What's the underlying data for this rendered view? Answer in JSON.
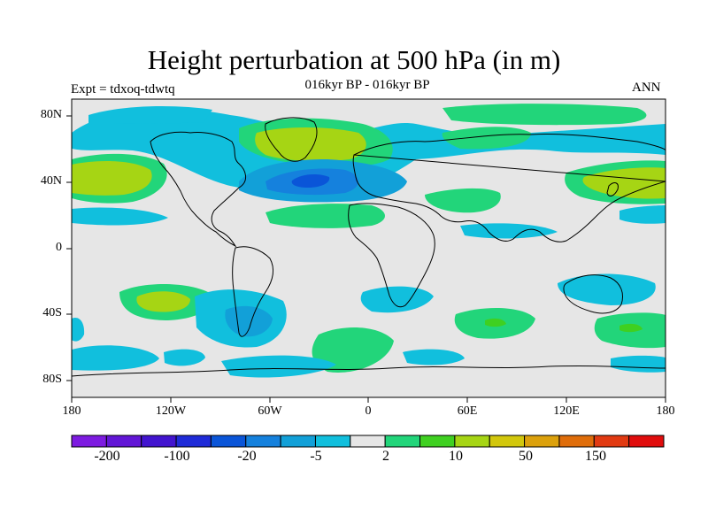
{
  "header": {
    "title": "Height perturbation at 500 hPa (in m)",
    "subtitle": "016kyr BP - 016kyr BP",
    "left_label": "Expt = tdxoq-tdwtq",
    "right_label": "ANN"
  },
  "chart_data": {
    "type": "heatmap",
    "title": "Height perturbation at 500 hPa (in m)",
    "subtitle": "016kyr BP - 016kyr BP",
    "xlabel": "",
    "ylabel": "",
    "x_ticks": [
      "180",
      "120W",
      "60W",
      "0",
      "60E",
      "120E",
      "180"
    ],
    "y_ticks": [
      "80N",
      "40N",
      "0",
      "40S",
      "80S"
    ],
    "xlim": [
      -180,
      180
    ],
    "ylim": [
      -90,
      90
    ],
    "projection": "cylindrical equidistant",
    "grid": false,
    "colorbar": {
      "orientation": "horizontal",
      "placement": "bottom",
      "labels": [
        "-200",
        "-100",
        "-20",
        "-5",
        "2",
        "10",
        "50",
        "150"
      ],
      "colors": [
        "#7d1be0",
        "#6216d6",
        "#4214cf",
        "#1f2bd8",
        "#0a55d8",
        "#1581dd",
        "#12a0d8",
        "#11bfdd",
        "#e6e6e6",
        "#22d57a",
        "#3fd021",
        "#a6d514",
        "#d2c70c",
        "#dca10c",
        "#df6d0a",
        "#e13a12",
        "#e00d0d"
      ]
    },
    "colors": {
      "background": "#e6e6e6",
      "cyan": "#11bfdd",
      "light_blue": "#12a0d8",
      "blue": "#1581dd",
      "dark_blue": "#0a55d8",
      "green": "#22d57a",
      "bright_green": "#3fd021",
      "yellow_green": "#a6d514",
      "coastline": "#000000"
    }
  }
}
